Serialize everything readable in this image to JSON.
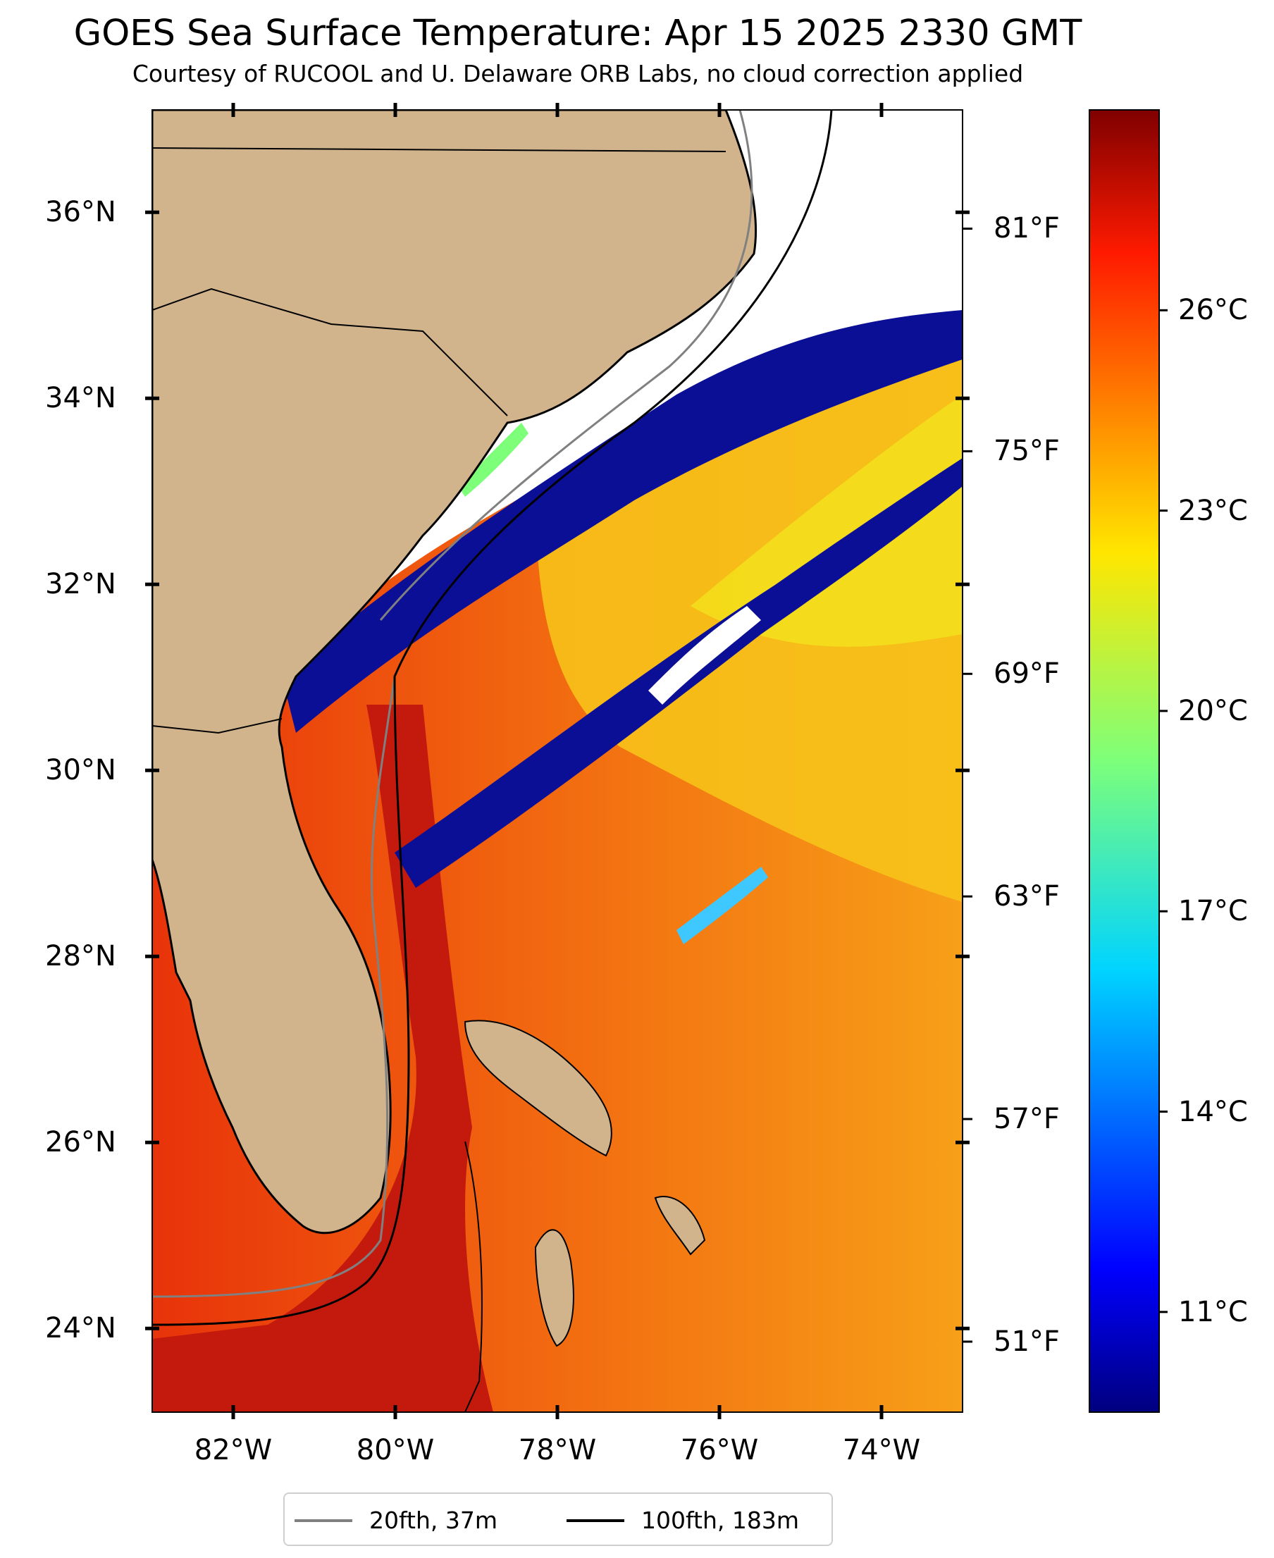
{
  "title": "GOES Sea Surface Temperature: Apr 15 2025 2330 GMT",
  "subtitle": "Courtesy of RUCOOL and U. Delaware ORB Labs, no cloud correction applied",
  "map": {
    "lon_range": [
      -83,
      -73
    ],
    "lat_range": [
      23.1,
      37.1
    ],
    "lat_ticks": [
      {
        "value": 36,
        "label": "36°N"
      },
      {
        "value": 34,
        "label": "34°N"
      },
      {
        "value": 32,
        "label": "32°N"
      },
      {
        "value": 30,
        "label": "30°N"
      },
      {
        "value": 28,
        "label": "28°N"
      },
      {
        "value": 26,
        "label": "26°N"
      },
      {
        "value": 24,
        "label": "24°N"
      }
    ],
    "lon_ticks": [
      {
        "value": -82,
        "label": "82°W"
      },
      {
        "value": -80,
        "label": "80°W"
      },
      {
        "value": -78,
        "label": "78°W"
      },
      {
        "value": -76,
        "label": "76°W"
      },
      {
        "value": -74,
        "label": "74°W"
      }
    ],
    "land_color": "#d2b48c",
    "colormap": "jet"
  },
  "colorbar": {
    "celsius_range": [
      9.5,
      29.0
    ],
    "celsius_ticks": [
      {
        "value": 11,
        "label": "11°C"
      },
      {
        "value": 14,
        "label": "14°C"
      },
      {
        "value": 17,
        "label": "17°C"
      },
      {
        "value": 20,
        "label": "20°C"
      },
      {
        "value": 23,
        "label": "23°C"
      },
      {
        "value": 26,
        "label": "26°C"
      }
    ],
    "fahrenheit_ticks": [
      {
        "value": 81,
        "label": "81°F"
      },
      {
        "value": 75,
        "label": "75°F"
      },
      {
        "value": 69,
        "label": "69°F"
      },
      {
        "value": 63,
        "label": "63°F"
      },
      {
        "value": 57,
        "label": "57°F"
      },
      {
        "value": 51,
        "label": "51°F"
      }
    ]
  },
  "legend": {
    "items": [
      {
        "label": "20fth, 37m",
        "color": "#808080"
      },
      {
        "label": "100fth, 183m",
        "color": "#000000"
      }
    ]
  }
}
